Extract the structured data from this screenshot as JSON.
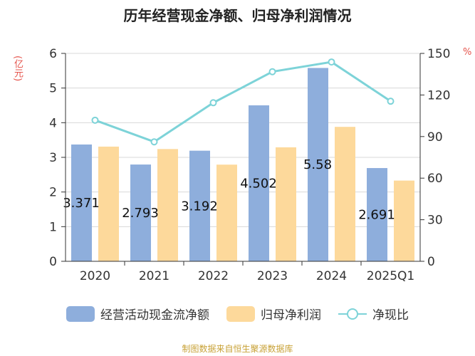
{
  "title": "历年经营现金净额、归母净利润情况",
  "source": "制图数据来自恒生聚源数据库",
  "colors": {
    "bar1": "#8EAEDC",
    "bar2": "#FDD99B",
    "line": "#7DD3D8",
    "unit": "#E5534B",
    "source": "#C8A237"
  },
  "chart_data": {
    "type": "bar",
    "title": "历年经营现金净额、归母净利润情况",
    "categories": [
      "2020",
      "2021",
      "2022",
      "2023",
      "2024",
      "2025Q1"
    ],
    "ylabel": "(亿元)",
    "y2label": "%",
    "ylim": [
      0,
      6
    ],
    "y2lim": [
      0,
      150
    ],
    "yticks": [
      "0",
      "1",
      "2",
      "3",
      "4",
      "5",
      "6"
    ],
    "y2ticks": [
      "0",
      "30",
      "60",
      "90",
      "120",
      "150"
    ],
    "grid": true,
    "legend_position": "bottom",
    "series": [
      {
        "name": "经营活动现金流净额",
        "type": "bar",
        "axis": "left",
        "values": [
          3.371,
          2.793,
          3.192,
          4.502,
          5.58,
          2.691
        ],
        "labels": [
          "3.371",
          "2.793",
          "3.192",
          "4.502",
          "5.58",
          "2.691"
        ]
      },
      {
        "name": "归母净利润",
        "type": "bar",
        "axis": "left",
        "values": [
          3.31,
          3.24,
          2.79,
          3.29,
          3.88,
          2.33
        ]
      },
      {
        "name": "净现比",
        "type": "line",
        "axis": "right",
        "values": [
          101.8,
          86.2,
          114.4,
          136.8,
          143.8,
          115.5
        ]
      }
    ]
  }
}
